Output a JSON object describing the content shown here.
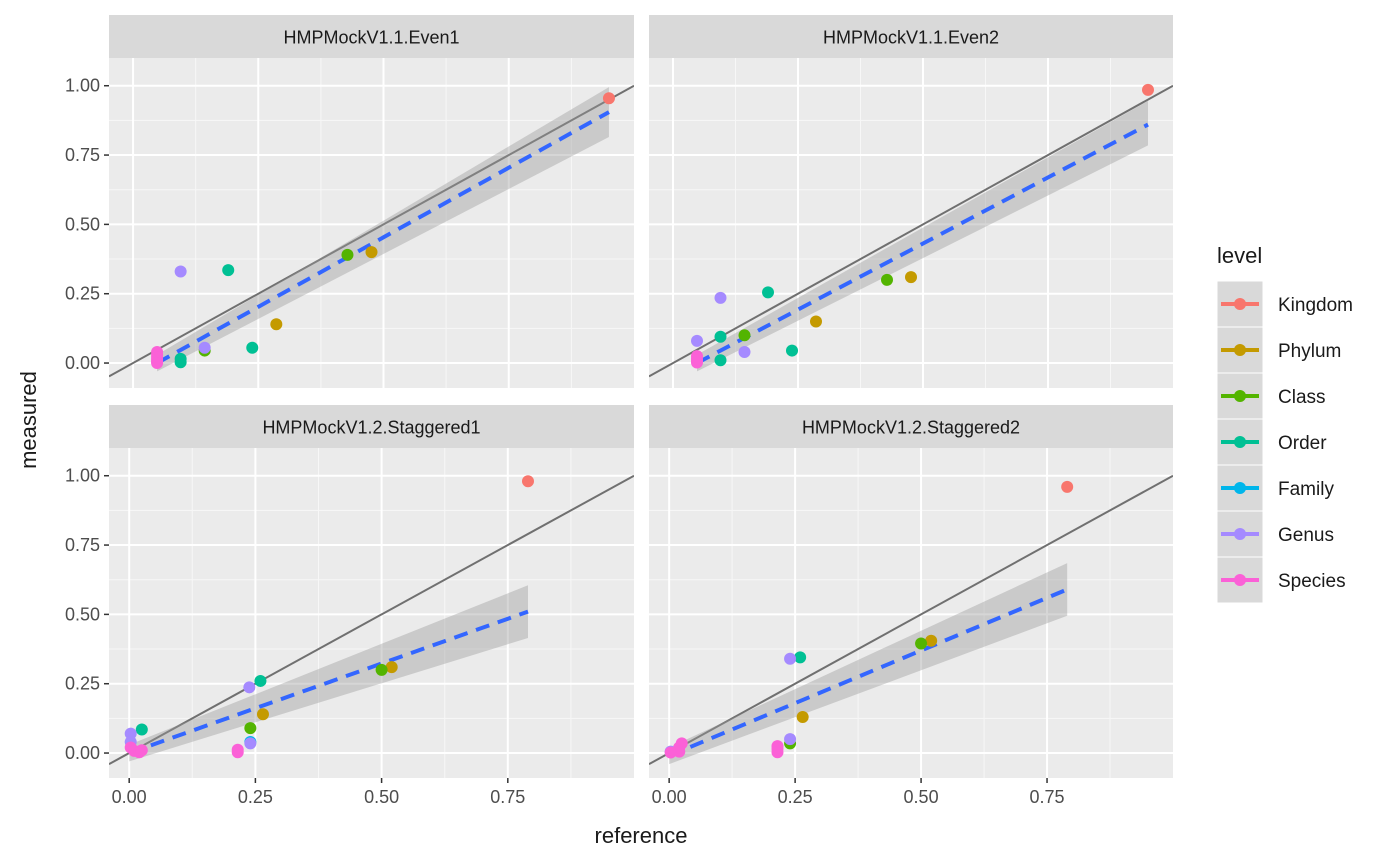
{
  "chart_data": {
    "type": "scatter",
    "xlabel": "reference",
    "ylabel": "measured",
    "legend": {
      "title": "level",
      "placement": "right",
      "entries": [
        {
          "name": "Kingdom",
          "color": "#F8766D"
        },
        {
          "name": "Phylum",
          "color": "#C49A00"
        },
        {
          "name": "Class",
          "color": "#53B400"
        },
        {
          "name": "Order",
          "color": "#00C094"
        },
        {
          "name": "Family",
          "color": "#00B6EB"
        },
        {
          "name": "Genus",
          "color": "#A58AFF"
        },
        {
          "name": "Species",
          "color": "#FB61D7"
        }
      ]
    },
    "y_ticks": [
      "0.00",
      "0.25",
      "0.50",
      "0.75",
      "1.00"
    ],
    "x_ticks": [
      "0.00",
      "0.25",
      "0.50",
      "0.75"
    ],
    "identity_line_color": "#707070",
    "fit_line_color": "#3366FF",
    "panels": [
      {
        "title": "HMPMockV1.1.Even1",
        "xlim": [
          -0.048,
          1.0
        ],
        "ylim": [
          -0.09,
          1.1
        ],
        "points": [
          {
            "x": 0.95,
            "y": 0.955,
            "level": "Kingdom"
          },
          {
            "x": 0.476,
            "y": 0.4,
            "level": "Phylum"
          },
          {
            "x": 0.286,
            "y": 0.14,
            "level": "Phylum"
          },
          {
            "x": 0.428,
            "y": 0.39,
            "level": "Class"
          },
          {
            "x": 0.143,
            "y": 0.045,
            "level": "Class"
          },
          {
            "x": 0.19,
            "y": 0.335,
            "level": "Order"
          },
          {
            "x": 0.238,
            "y": 0.055,
            "level": "Order"
          },
          {
            "x": 0.095,
            "y": 0.015,
            "level": "Order"
          },
          {
            "x": 0.095,
            "y": 0.003,
            "level": "Order"
          },
          {
            "x": 0.095,
            "y": 0.33,
            "level": "Genus"
          },
          {
            "x": 0.143,
            "y": 0.055,
            "level": "Genus"
          },
          {
            "x": 0.048,
            "y": 0.04,
            "level": "Species"
          },
          {
            "x": 0.048,
            "y": 0.03,
            "level": "Species"
          },
          {
            "x": 0.048,
            "y": 0.02,
            "level": "Species"
          },
          {
            "x": 0.048,
            "y": 0.012,
            "level": "Species"
          },
          {
            "x": 0.048,
            "y": 0.005,
            "level": "Species"
          },
          {
            "x": 0.048,
            "y": 0.0,
            "level": "Species"
          }
        ],
        "fit": {
          "x": [
            0.048,
            0.95
          ],
          "y": [
            0.0,
            0.905
          ]
        },
        "band": {
          "x": [
            0.048,
            0.95
          ],
          "lower": [
            -0.03,
            0.815
          ],
          "upper": [
            0.03,
            0.995
          ]
        }
      },
      {
        "title": "HMPMockV1.1.Even2",
        "xlim": [
          -0.048,
          1.0
        ],
        "ylim": [
          -0.09,
          1.1
        ],
        "points": [
          {
            "x": 0.95,
            "y": 0.985,
            "level": "Kingdom"
          },
          {
            "x": 0.476,
            "y": 0.31,
            "level": "Phylum"
          },
          {
            "x": 0.286,
            "y": 0.15,
            "level": "Phylum"
          },
          {
            "x": 0.428,
            "y": 0.3,
            "level": "Class"
          },
          {
            "x": 0.143,
            "y": 0.1,
            "level": "Class"
          },
          {
            "x": 0.19,
            "y": 0.255,
            "level": "Order"
          },
          {
            "x": 0.238,
            "y": 0.045,
            "level": "Order"
          },
          {
            "x": 0.095,
            "y": 0.095,
            "level": "Order"
          },
          {
            "x": 0.095,
            "y": 0.01,
            "level": "Order"
          },
          {
            "x": 0.095,
            "y": 0.235,
            "level": "Genus"
          },
          {
            "x": 0.143,
            "y": 0.04,
            "level": "Genus"
          },
          {
            "x": 0.048,
            "y": 0.08,
            "level": "Genus"
          },
          {
            "x": 0.048,
            "y": 0.025,
            "level": "Species"
          },
          {
            "x": 0.048,
            "y": 0.015,
            "level": "Species"
          },
          {
            "x": 0.048,
            "y": 0.008,
            "level": "Species"
          },
          {
            "x": 0.048,
            "y": 0.002,
            "level": "Species"
          }
        ],
        "fit": {
          "x": [
            0.048,
            0.95
          ],
          "y": [
            0.0,
            0.86
          ]
        },
        "band": {
          "x": [
            0.048,
            0.95
          ],
          "lower": [
            -0.03,
            0.785
          ],
          "upper": [
            0.03,
            0.945
          ]
        }
      },
      {
        "title": "HMPMockV1.2.Staggered1",
        "xlim": [
          -0.04,
          1.0
        ],
        "ylim": [
          -0.09,
          1.1
        ],
        "points": [
          {
            "x": 0.79,
            "y": 0.98,
            "level": "Kingdom"
          },
          {
            "x": 0.52,
            "y": 0.31,
            "level": "Phylum"
          },
          {
            "x": 0.265,
            "y": 0.14,
            "level": "Phylum"
          },
          {
            "x": 0.5,
            "y": 0.3,
            "level": "Class"
          },
          {
            "x": 0.24,
            "y": 0.09,
            "level": "Class"
          },
          {
            "x": 0.26,
            "y": 0.26,
            "level": "Order"
          },
          {
            "x": 0.025,
            "y": 0.085,
            "level": "Order"
          },
          {
            "x": 0.24,
            "y": 0.04,
            "level": "Family"
          },
          {
            "x": 0.238,
            "y": 0.237,
            "level": "Genus"
          },
          {
            "x": 0.24,
            "y": 0.035,
            "level": "Genus"
          },
          {
            "x": 0.003,
            "y": 0.07,
            "level": "Genus"
          },
          {
            "x": 0.003,
            "y": 0.04,
            "level": "Genus"
          },
          {
            "x": 0.003,
            "y": 0.02,
            "level": "Species"
          },
          {
            "x": 0.01,
            "y": 0.008,
            "level": "Species"
          },
          {
            "x": 0.02,
            "y": 0.003,
            "level": "Species"
          },
          {
            "x": 0.025,
            "y": 0.01,
            "level": "Species"
          },
          {
            "x": 0.215,
            "y": 0.012,
            "level": "Species"
          },
          {
            "x": 0.215,
            "y": 0.003,
            "level": "Species"
          }
        ],
        "fit": {
          "x": [
            0.0,
            0.79
          ],
          "y": [
            0.0,
            0.51
          ]
        },
        "band": {
          "x": [
            0.0,
            0.79
          ],
          "lower": [
            -0.03,
            0.415
          ],
          "upper": [
            0.03,
            0.605
          ]
        }
      },
      {
        "title": "HMPMockV1.2.Staggered2",
        "xlim": [
          -0.04,
          1.0
        ],
        "ylim": [
          -0.09,
          1.1
        ],
        "points": [
          {
            "x": 0.79,
            "y": 0.96,
            "level": "Kingdom"
          },
          {
            "x": 0.52,
            "y": 0.405,
            "level": "Phylum"
          },
          {
            "x": 0.265,
            "y": 0.13,
            "level": "Phylum"
          },
          {
            "x": 0.5,
            "y": 0.395,
            "level": "Class"
          },
          {
            "x": 0.24,
            "y": 0.035,
            "level": "Class"
          },
          {
            "x": 0.26,
            "y": 0.345,
            "level": "Order"
          },
          {
            "x": 0.24,
            "y": 0.34,
            "level": "Genus"
          },
          {
            "x": 0.24,
            "y": 0.05,
            "level": "Genus"
          },
          {
            "x": 0.003,
            "y": 0.005,
            "level": "Genus"
          },
          {
            "x": 0.025,
            "y": 0.035,
            "level": "Species"
          },
          {
            "x": 0.02,
            "y": 0.02,
            "level": "Species"
          },
          {
            "x": 0.02,
            "y": 0.005,
            "level": "Species"
          },
          {
            "x": 0.003,
            "y": 0.002,
            "level": "Species"
          },
          {
            "x": 0.215,
            "y": 0.025,
            "level": "Species"
          },
          {
            "x": 0.215,
            "y": 0.015,
            "level": "Species"
          },
          {
            "x": 0.215,
            "y": 0.003,
            "level": "Species"
          }
        ],
        "fit": {
          "x": [
            0.0,
            0.79
          ],
          "y": [
            -0.01,
            0.59
          ]
        },
        "band": {
          "x": [
            0.0,
            0.79
          ],
          "lower": [
            -0.04,
            0.495
          ],
          "upper": [
            0.02,
            0.685
          ]
        }
      }
    ]
  }
}
